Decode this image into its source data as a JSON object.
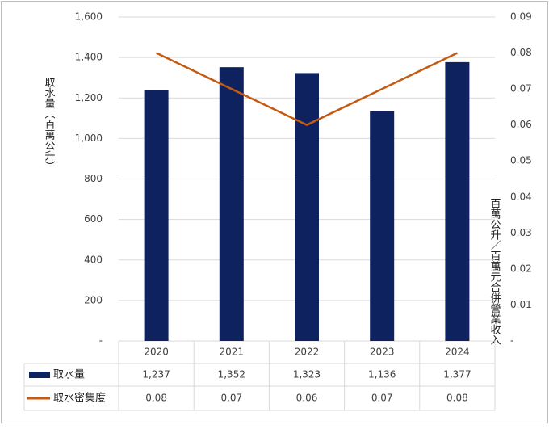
{
  "chart_data": {
    "type": "bar-line",
    "y_label": "取水量（百萬公升）",
    "y2_label": "百萬公升／百萬元合併營業收入",
    "categories": [
      "2020",
      "2021",
      "2022",
      "2023",
      "2024"
    ],
    "series": [
      {
        "name": "取水量",
        "type": "bar",
        "color": "#0e2260",
        "values": [
          1237,
          1352,
          1323,
          1136,
          1377
        ],
        "value_labels": [
          "1,237",
          "1,352",
          "1,323",
          "1,136",
          "1,377"
        ]
      },
      {
        "name": "取水密集度",
        "type": "line",
        "axis": "y2",
        "color": "#c55a11",
        "values": [
          0.08,
          0.07,
          0.06,
          0.07,
          0.08
        ]
      }
    ],
    "ylim": [
      0,
      1600
    ],
    "yticks": [
      {
        "value": 0,
        "label": "-"
      },
      200,
      400,
      600,
      800,
      {
        "value": 1000,
        "label": "1,000"
      },
      {
        "value": 1200,
        "label": "1,200"
      },
      {
        "value": 1400,
        "label": "1,400"
      },
      {
        "value": 1600,
        "label": "1,600"
      }
    ],
    "y2lim": [
      0,
      0.09
    ],
    "y2ticks": [
      {
        "value": 0,
        "label": "-"
      },
      0.01,
      0.02,
      0.03,
      0.04,
      0.05,
      0.06,
      0.07,
      0.08,
      0.09
    ],
    "grid": true
  }
}
